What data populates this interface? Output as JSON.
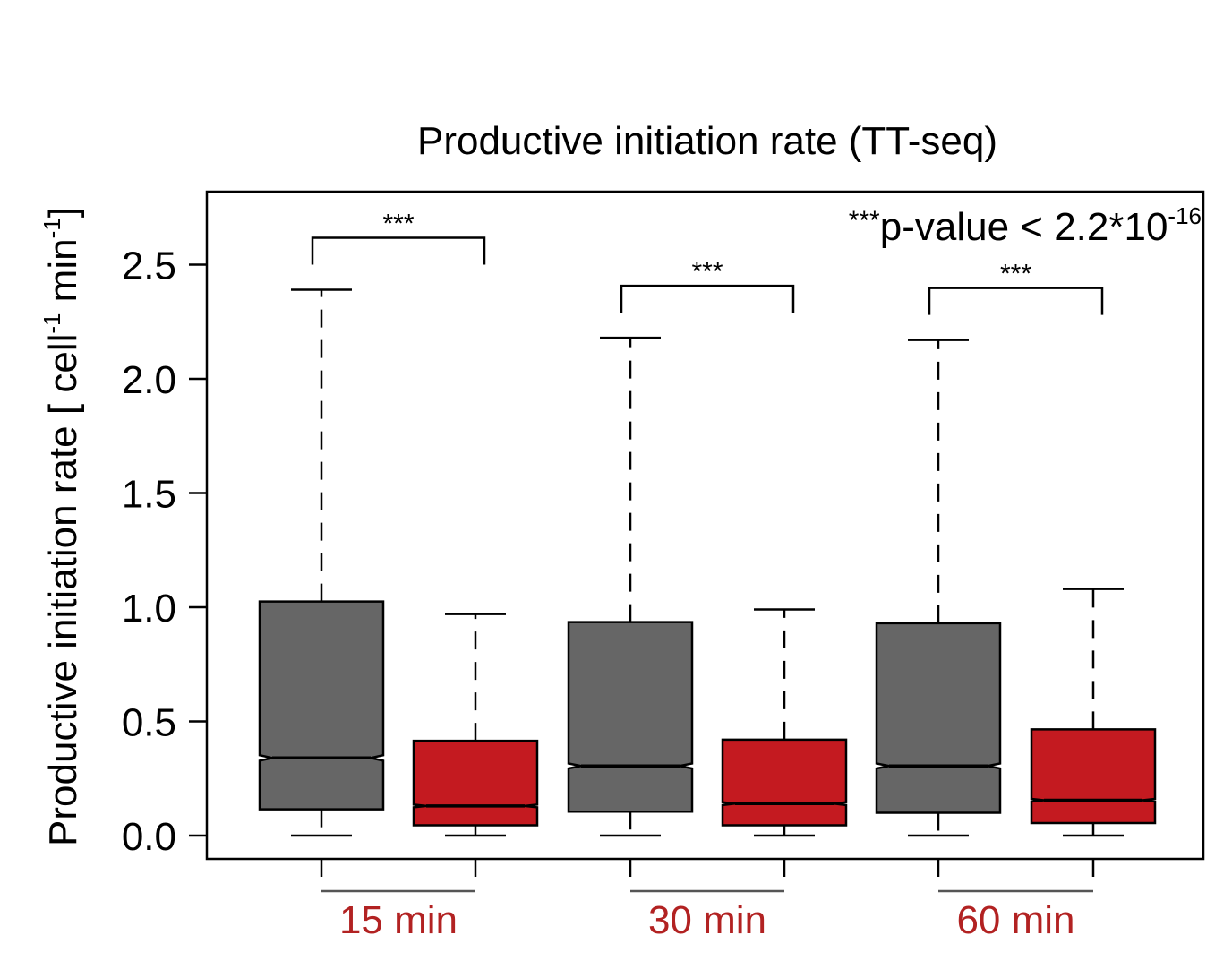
{
  "chart_data": {
    "type": "boxplot",
    "title": "Productive initiation rate (TT-seq)",
    "ylabel_main": "Productive initiation rate [ cell",
    "ylabel_sup1": "-1",
    "ylabel_mid": " min",
    "ylabel_sup2": "-1",
    "ylabel_end": "]",
    "ylim": [
      -0.1,
      2.85
    ],
    "yticks": [
      0.0,
      0.5,
      1.0,
      1.5,
      2.0,
      2.5
    ],
    "ytick_labels": [
      "0.0",
      "0.5",
      "1.0",
      "1.5",
      "2.0",
      "2.5"
    ],
    "pvalue_stars": "***",
    "pvalue_text": "p-value < 2.2*10",
    "pvalue_exponent": "-16",
    "colors": {
      "control": "#666666",
      "treated": "#c41a20",
      "group_label": "#b22222"
    },
    "groups": [
      {
        "label": "15 min",
        "significance": "***",
        "boxes": [
          {
            "series": "control",
            "min": 0.0,
            "q1": 0.115,
            "median": 0.34,
            "q3": 1.025,
            "max": 2.39,
            "notch": 0.012
          },
          {
            "series": "treated",
            "min": 0.0,
            "q1": 0.045,
            "median": 0.13,
            "q3": 0.415,
            "max": 0.97,
            "notch": 0.006
          }
        ]
      },
      {
        "label": "30 min",
        "significance": "***",
        "boxes": [
          {
            "series": "control",
            "min": 0.0,
            "q1": 0.105,
            "median": 0.305,
            "q3": 0.935,
            "max": 2.18,
            "notch": 0.011
          },
          {
            "series": "treated",
            "min": 0.0,
            "q1": 0.045,
            "median": 0.14,
            "q3": 0.42,
            "max": 0.99,
            "notch": 0.006
          }
        ]
      },
      {
        "label": "60 min",
        "significance": "***",
        "boxes": [
          {
            "series": "control",
            "min": 0.0,
            "q1": 0.1,
            "median": 0.305,
            "q3": 0.93,
            "max": 2.17,
            "notch": 0.011
          },
          {
            "series": "treated",
            "min": 0.0,
            "q1": 0.055,
            "median": 0.155,
            "q3": 0.465,
            "max": 1.08,
            "notch": 0.006
          }
        ]
      }
    ]
  }
}
